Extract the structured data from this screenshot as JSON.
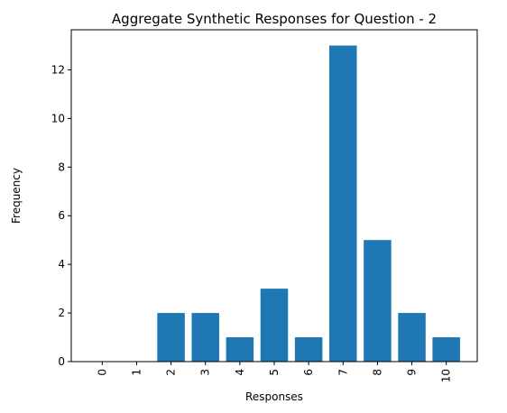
{
  "colors": {
    "bar": "#1f77b4",
    "axis": "#000000",
    "background": "#ffffff"
  },
  "chart_data": {
    "type": "bar",
    "title": "Aggregate Synthetic Responses for Question - 2",
    "xlabel": "Responses",
    "ylabel": "Frequency",
    "categories": [
      "0",
      "1",
      "2",
      "3",
      "4",
      "5",
      "6",
      "7",
      "8",
      "9",
      "10"
    ],
    "values": [
      0,
      0,
      2,
      2,
      1,
      3,
      1,
      13,
      5,
      2,
      1
    ],
    "ylim": [
      0,
      13.65
    ],
    "yticks": [
      "0",
      "2",
      "4",
      "6",
      "8",
      "10",
      "12"
    ],
    "xtick_rotation": "vertical",
    "grid": false,
    "legend": "none"
  }
}
